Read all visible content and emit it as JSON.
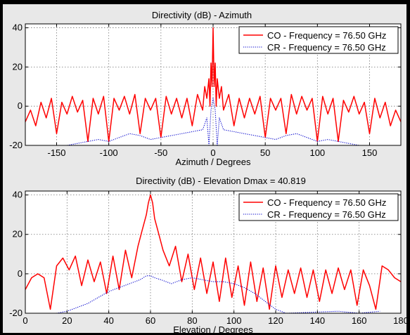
{
  "chart_data": [
    {
      "type": "line",
      "title": "Directivity (dB) - Azimuth",
      "xlabel": "Azimuth / Degrees",
      "ylabel": "",
      "xlim": [
        -180,
        180
      ],
      "ylim": [
        -20,
        42
      ],
      "xticks": [
        -150,
        -100,
        -50,
        0,
        50,
        100,
        150
      ],
      "yticks": [
        -20,
        0,
        20,
        40
      ],
      "grid": true,
      "legend_position": "top-right",
      "series": [
        {
          "name": "CO - Frequency = 76.50 GHz",
          "color": "#ff0000",
          "style": "solid",
          "x": [
            -180,
            -175,
            -170,
            -165,
            -160,
            -155,
            -150,
            -145,
            -140,
            -135,
            -130,
            -125,
            -120,
            -115,
            -110,
            -105,
            -100,
            -95,
            -90,
            -85,
            -80,
            -75,
            -70,
            -65,
            -60,
            -55,
            -50,
            -45,
            -40,
            -35,
            -30,
            -25,
            -20,
            -15,
            -10,
            -8,
            -6,
            -4,
            -3,
            -2,
            -1,
            0,
            1,
            2,
            3,
            4,
            6,
            8,
            10,
            15,
            20,
            25,
            30,
            35,
            40,
            45,
            50,
            55,
            60,
            65,
            70,
            75,
            80,
            85,
            90,
            95,
            100,
            105,
            110,
            115,
            120,
            125,
            130,
            135,
            140,
            145,
            150,
            155,
            160,
            165,
            170,
            175,
            180
          ],
          "y": [
            -8,
            -2,
            -10,
            2,
            -6,
            4,
            -14,
            2,
            -4,
            5,
            -3,
            3,
            -18,
            4,
            -4,
            5,
            -18,
            4,
            -2,
            5,
            -4,
            6,
            -14,
            4,
            -2,
            4,
            -16,
            5,
            -4,
            4,
            -6,
            4,
            -10,
            6,
            -2,
            10,
            4,
            14,
            0,
            22,
            10,
            40,
            10,
            22,
            0,
            14,
            4,
            10,
            -2,
            6,
            -10,
            4,
            -6,
            4,
            -4,
            5,
            -16,
            4,
            -2,
            4,
            -14,
            6,
            -4,
            5,
            -2,
            4,
            -18,
            5,
            -4,
            4,
            -18,
            3,
            -3,
            5,
            -4,
            2,
            -14,
            4,
            -6,
            2,
            -10,
            -2,
            -8
          ]
        },
        {
          "name": "CR - Frequency = 76.50 GHz",
          "color": "#0000cc",
          "style": "dotted",
          "x": [
            -140,
            -130,
            -120,
            -110,
            -100,
            -90,
            -80,
            -70,
            -60,
            -50,
            -40,
            -30,
            -20,
            -10,
            -6,
            -4,
            -2,
            0,
            2,
            4,
            6,
            10,
            20,
            30,
            40,
            50,
            60,
            70,
            80,
            90,
            100,
            110,
            120,
            130,
            140
          ],
          "y": [
            -20,
            -19,
            -18,
            -17,
            -18,
            -16,
            -14,
            -15,
            -17,
            -16,
            -15,
            -14,
            -13,
            -12,
            -6,
            -20,
            -2,
            4,
            -2,
            -20,
            -6,
            -12,
            -13,
            -14,
            -15,
            -16,
            -17,
            -15,
            -14,
            -16,
            -18,
            -17,
            -18,
            -19,
            -20
          ]
        }
      ]
    },
    {
      "type": "line",
      "title": "Directivity (dB) - Elevation",
      "annotation": "Dmax = 40.819",
      "xlabel": "Elevation / Degrees",
      "ylabel": "",
      "xlim": [
        0,
        180
      ],
      "ylim": [
        -20,
        42
      ],
      "xticks": [
        0,
        20,
        40,
        60,
        80,
        100,
        120,
        140,
        160,
        180
      ],
      "yticks": [
        -20,
        0,
        20,
        40
      ],
      "grid": true,
      "legend_position": "top-right",
      "series": [
        {
          "name": "CO - Frequency = 76.50 GHz",
          "color": "#ff0000",
          "style": "solid",
          "x": [
            0,
            3,
            6,
            9,
            12,
            15,
            18,
            21,
            24,
            27,
            30,
            33,
            36,
            39,
            42,
            45,
            48,
            51,
            54,
            56,
            58,
            59,
            60,
            61,
            62,
            64,
            66,
            69,
            72,
            75,
            78,
            81,
            84,
            87,
            90,
            93,
            96,
            99,
            102,
            105,
            108,
            111,
            114,
            117,
            120,
            123,
            126,
            129,
            132,
            135,
            138,
            141,
            144,
            147,
            150,
            153,
            156,
            159,
            162,
            165,
            168,
            171,
            174,
            177,
            180
          ],
          "y": [
            -8,
            -2,
            0,
            -2,
            -18,
            4,
            8,
            2,
            9,
            -6,
            7,
            -4,
            6,
            -10,
            9,
            -8,
            12,
            -2,
            14,
            22,
            30,
            36,
            40,
            36,
            28,
            20,
            12,
            4,
            14,
            -4,
            10,
            -8,
            8,
            -10,
            6,
            -14,
            8,
            -12,
            4,
            -16,
            6,
            -14,
            3,
            -18,
            4,
            -12,
            2,
            -10,
            3,
            -12,
            2,
            -14,
            2,
            -10,
            3,
            -8,
            2,
            -16,
            2,
            -6,
            -18,
            4,
            2,
            -2,
            -4
          ]
        },
        {
          "name": "CR - Frequency = 76.50 GHz",
          "color": "#0000cc",
          "style": "dotted",
          "x": [
            15,
            20,
            25,
            30,
            35,
            40,
            45,
            50,
            55,
            58,
            60,
            62,
            65,
            70,
            75,
            80,
            85,
            90,
            95,
            100,
            105,
            110,
            115,
            120,
            125,
            150,
            160,
            170
          ],
          "y": [
            -20,
            -19,
            -17,
            -15,
            -12,
            -9,
            -7,
            -5,
            -3,
            -1,
            -1,
            -2,
            -3,
            -5,
            -3,
            -2,
            -3,
            -4,
            -4,
            -5,
            -7,
            -10,
            -14,
            -18,
            -20,
            -19,
            -20,
            -19
          ]
        }
      ]
    }
  ]
}
